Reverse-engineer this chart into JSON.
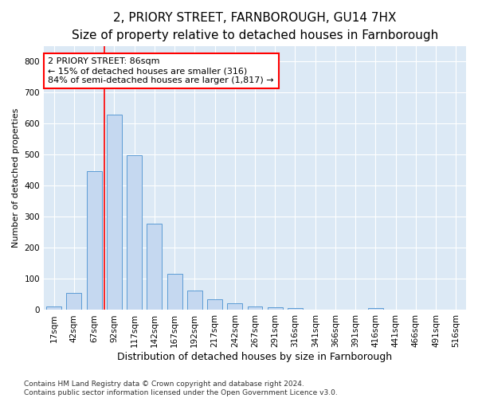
{
  "title": "2, PRIORY STREET, FARNBOROUGH, GU14 7HX",
  "subtitle": "Size of property relative to detached houses in Farnborough",
  "xlabel": "Distribution of detached houses by size in Farnborough",
  "ylabel": "Number of detached properties",
  "bar_labels": [
    "17sqm",
    "42sqm",
    "67sqm",
    "92sqm",
    "117sqm",
    "142sqm",
    "167sqm",
    "192sqm",
    "217sqm",
    "242sqm",
    "267sqm",
    "291sqm",
    "316sqm",
    "341sqm",
    "366sqm",
    "391sqm",
    "416sqm",
    "441sqm",
    "466sqm",
    "491sqm",
    "516sqm"
  ],
  "bar_values": [
    12,
    55,
    448,
    628,
    498,
    278,
    117,
    63,
    35,
    22,
    12,
    8,
    7,
    0,
    0,
    0,
    7,
    0,
    0,
    0,
    0
  ],
  "bar_color": "#c5d8f0",
  "bar_edge_color": "#5b9bd5",
  "vline_index": 3,
  "vline_color": "red",
  "annotation_line1": "2 PRIORY STREET: 86sqm",
  "annotation_line2": "← 15% of detached houses are smaller (316)",
  "annotation_line3": "84% of semi-detached houses are larger (1,817) →",
  "annotation_box_color": "white",
  "annotation_box_edge": "red",
  "ylim": [
    0,
    850
  ],
  "yticks": [
    0,
    100,
    200,
    300,
    400,
    500,
    600,
    700,
    800
  ],
  "background_color": "#dce9f5",
  "grid_color": "white",
  "footnote": "Contains HM Land Registry data © Crown copyright and database right 2024.\nContains public sector information licensed under the Open Government Licence v3.0.",
  "title_fontsize": 11,
  "subtitle_fontsize": 9.5,
  "xlabel_fontsize": 9,
  "ylabel_fontsize": 8,
  "tick_fontsize": 7.5,
  "annotation_fontsize": 8,
  "footnote_fontsize": 6.5
}
